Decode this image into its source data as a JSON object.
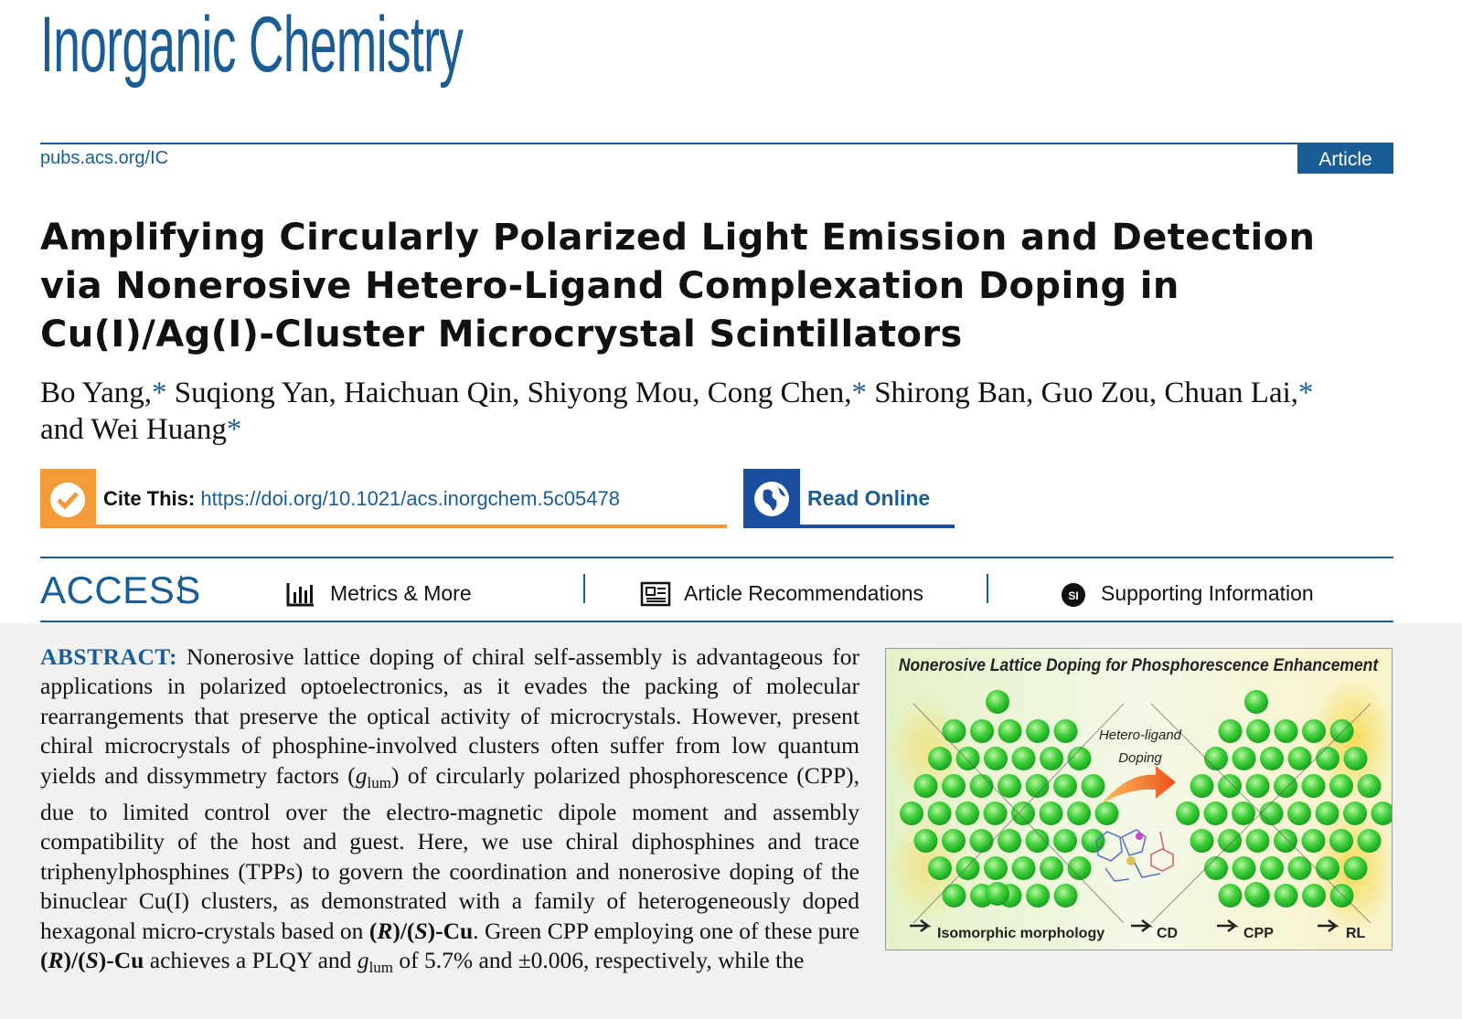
{
  "header": {
    "journal": "Inorganic Chemistry",
    "url": "pubs.acs.org/IC",
    "article_type": "Article"
  },
  "title": "Amplifying Circularly Polarized Light Emission and Detection via Nonerosive Hetero-Ligand Complexation Doping in Cu(I)/Ag(I)-Cluster Microcrystal Scintillators",
  "authors": [
    {
      "name": "Bo Yang,",
      "mark": "*"
    },
    {
      "name": "Suqiong Yan,"
    },
    {
      "name": "Haichuan Qin,"
    },
    {
      "name": "Shiyong Mou,"
    },
    {
      "name": "Cong Chen,",
      "mark": "*"
    },
    {
      "name": "Shirong Ban,"
    },
    {
      "name": "Guo Zou,"
    },
    {
      "name": "Chuan Lai,",
      "mark": "*"
    },
    {
      "name": "and Wei Huang",
      "mark": "*"
    }
  ],
  "cite": {
    "label": "Cite This:",
    "doi": "https://doi.org/10.1021/acs.inorgchem.5c05478"
  },
  "read_online": "Read Online",
  "access": "ACCESS",
  "nav": [
    "Metrics & More",
    "Article Recommendations",
    "Supporting Information"
  ],
  "si_icon": "SI",
  "abstract": {
    "label": "ABSTRACT:",
    "segments": [
      {
        "text": "Nonerosive lattice doping of chiral self-assembly is advantageous for applications in polarized optoelectronics, as it evades the packing of molecular rearrangements that preserve the optical activity of microcrystals. However, present chiral microcrystals of phosphine-involved clusters often suffer from low quantum yields and dissymmetry factors (",
        "style": "plain"
      },
      {
        "text": "g",
        "style": "italic"
      },
      {
        "text": "lum",
        "style": "sub"
      },
      {
        "text": ") of circularly polarized phosphorescence (CPP), due to limited control over the electro-magnetic dipole moment and assembly compatibility of the host and guest. Here, we use chiral diphosphines and trace triphenylphosphines (TPPs) to govern the coordination and nonerosive doping of the binuclear Cu(I) clusters, as demonstrated with a family of heterogeneously doped hexagonal micro-crystals based on ",
        "style": "plain"
      },
      {
        "text": "(",
        "style": "bold"
      },
      {
        "text": "R",
        "style": "bold-italic"
      },
      {
        "text": ")/(",
        "style": "bold"
      },
      {
        "text": "S",
        "style": "bold-italic"
      },
      {
        "text": ")-Cu",
        "style": "bold"
      },
      {
        "text": ". Green CPP employing one of these pure ",
        "style": "plain"
      },
      {
        "text": "(",
        "style": "bold"
      },
      {
        "text": "R",
        "style": "bold-italic"
      },
      {
        "text": ")/(",
        "style": "bold"
      },
      {
        "text": "S",
        "style": "bold-italic"
      },
      {
        "text": ")-Cu",
        "style": "bold"
      },
      {
        "text": " achieves a PLQY and ",
        "style": "plain"
      },
      {
        "text": "g",
        "style": "italic"
      },
      {
        "text": "lum",
        "style": "sub"
      },
      {
        "text": " of 5.7% and ±0.006, respectively, while the",
        "style": "plain"
      }
    ]
  },
  "graphic": {
    "title": "Nonerosive Lattice Doping for Phosphorescence Enhancement",
    "arrow_label": [
      "Hetero-ligand",
      "Doping"
    ],
    "bottom_labels": [
      "Isomorphic morphology",
      "CD",
      "CPP",
      "RL"
    ]
  }
}
